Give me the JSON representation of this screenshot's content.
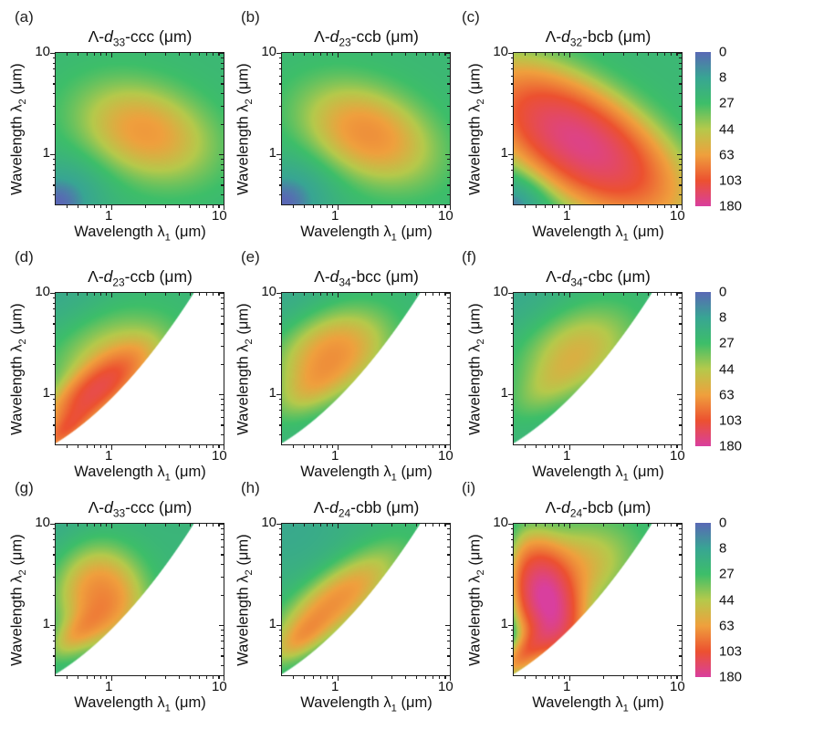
{
  "chart_data": {
    "type": "heatmap",
    "layout": "3x3 grid of log-log pseudocolor maps with one shared colorbar per row",
    "x_axis": {
      "label_pre": "Wavelength λ",
      "label_sub": "1",
      "label_post": " (μm)",
      "scale": "log",
      "min": 0.32,
      "max": 10,
      "tick_labels": [
        "1",
        "10"
      ],
      "major_ticks": [
        1,
        10
      ],
      "minor_ticks": [
        0.4,
        0.5,
        0.6,
        0.7,
        0.8,
        0.9,
        2,
        3,
        4,
        5,
        6,
        7,
        8,
        9
      ]
    },
    "y_axis": {
      "label_pre": "Wavelength λ",
      "label_sub": "2",
      "label_post": " (μm)",
      "scale": "log",
      "min": 0.32,
      "max": 10,
      "tick_labels": [
        "1",
        "10"
      ],
      "major_ticks": [
        1,
        10
      ],
      "minor_ticks": [
        0.4,
        0.5,
        0.6,
        0.7,
        0.8,
        0.9,
        2,
        3,
        4,
        5,
        6,
        7,
        8,
        9
      ]
    },
    "colorbar": {
      "tick_labels": [
        "0",
        "8",
        "27",
        "44",
        "63",
        "103",
        "180"
      ],
      "tick_values": [
        0,
        8,
        27,
        44,
        63,
        103,
        180
      ],
      "stop_colors": [
        "#5968b5",
        "#38a593",
        "#3dbe69",
        "#b5c94b",
        "#efa03d",
        "#ec5130",
        "#d93f9e"
      ],
      "unit": "μm"
    },
    "mask_boundary": {
      "c0": -0.05,
      "c1": 1.103,
      "c2": 0.427,
      "note": "log10(λ2) >= c0 + c1·u + c2·u², u = log10(λ1); region below is white (not phase-matchable)"
    },
    "panels": [
      {
        "panel_label": "(a)",
        "title_prefix": "Λ-",
        "title_var": "d",
        "title_sub": "33",
        "title_suffix": "-ccc (μm)",
        "masked": false,
        "base": 22,
        "peak_value_approx": 65,
        "blobs": [
          {
            "cx": 0.3,
            "cy": 0.22,
            "sx": 0.42,
            "sy": 0.3,
            "rot": -25,
            "amp": 44
          },
          {
            "cx": -0.52,
            "cy": -0.52,
            "sx": 0.34,
            "sy": 0.26,
            "rot": 45,
            "amp": -23
          }
        ]
      },
      {
        "panel_label": "(b)",
        "title_prefix": "Λ-",
        "title_var": "d",
        "title_sub": "23",
        "title_suffix": "-ccb (μm)",
        "masked": false,
        "base": 22,
        "peak_value_approx": 70,
        "blobs": [
          {
            "cx": 0.27,
            "cy": 0.2,
            "sx": 0.42,
            "sy": 0.29,
            "rot": -30,
            "amp": 49
          },
          {
            "cx": -0.52,
            "cy": -0.52,
            "sx": 0.36,
            "sy": 0.27,
            "rot": 45,
            "amp": -23
          }
        ]
      },
      {
        "panel_label": "(c)",
        "title_prefix": "Λ-",
        "title_var": "d",
        "title_sub": "32",
        "title_suffix": "-bcb (μm)",
        "masked": false,
        "base": 22,
        "peak_value_approx": 163,
        "blobs": [
          {
            "cx": 0.1,
            "cy": 0.11,
            "sx": 0.62,
            "sy": 0.3,
            "rot": -38,
            "amp": 141
          },
          {
            "cx": -0.52,
            "cy": -0.52,
            "sx": 0.28,
            "sy": 0.22,
            "rot": 45,
            "amp": -22
          }
        ]
      },
      {
        "panel_label": "(d)",
        "title_prefix": "Λ-",
        "title_var": "d",
        "title_sub": "23",
        "title_suffix": "-ccb (μm)",
        "masked": true,
        "base": 20,
        "peak_value_approx": 115,
        "blobs": [
          {
            "cx": -0.15,
            "cy": 0.02,
            "sx": 0.36,
            "sy": 0.14,
            "rot": 42,
            "amp": 85
          },
          {
            "cx": -0.02,
            "cy": 0.4,
            "sx": 0.4,
            "sy": 0.3,
            "rot": 30,
            "amp": 28
          },
          {
            "cx": -0.42,
            "cy": -0.38,
            "sx": 0.2,
            "sy": 0.08,
            "rot": 45,
            "amp": 50
          },
          {
            "cx": -0.5,
            "cy": 1.0,
            "sx": 0.45,
            "sy": 0.4,
            "rot": 0,
            "amp": -9
          }
        ]
      },
      {
        "panel_label": "(e)",
        "title_prefix": "Λ-",
        "title_var": "d",
        "title_sub": "34",
        "title_suffix": "-bcc (μm)",
        "masked": true,
        "base": 20,
        "peak_value_approx": 69,
        "blobs": [
          {
            "cx": -0.04,
            "cy": 0.42,
            "sx": 0.36,
            "sy": 0.27,
            "rot": 32,
            "amp": 49
          },
          {
            "cx": -0.26,
            "cy": 0.04,
            "sx": 0.26,
            "sy": 0.14,
            "rot": 42,
            "amp": 18
          },
          {
            "cx": -0.5,
            "cy": 1.0,
            "sx": 0.45,
            "sy": 0.4,
            "rot": 0,
            "amp": -9
          }
        ]
      },
      {
        "panel_label": "(f)",
        "title_prefix": "Λ-",
        "title_var": "d",
        "title_sub": "34",
        "title_suffix": "-cbc (μm)",
        "masked": true,
        "base": 20,
        "peak_value_approx": 54,
        "blobs": [
          {
            "cx": 0.07,
            "cy": 0.44,
            "sx": 0.38,
            "sy": 0.28,
            "rot": 32,
            "amp": 34
          },
          {
            "cx": -0.22,
            "cy": 0.05,
            "sx": 0.28,
            "sy": 0.14,
            "rot": 42,
            "amp": 12
          },
          {
            "cx": -0.5,
            "cy": 1.0,
            "sx": 0.45,
            "sy": 0.4,
            "rot": 0,
            "amp": -9
          }
        ]
      },
      {
        "panel_label": "(g)",
        "title_prefix": "Λ-",
        "title_var": "d",
        "title_sub": "33",
        "title_suffix": "-ccc (μm)",
        "masked": true,
        "base": 20,
        "peak_value_approx": 76,
        "blobs": [
          {
            "cx": -0.09,
            "cy": 0.3,
            "sx": 0.26,
            "sy": 0.34,
            "rot": 10,
            "amp": 56
          },
          {
            "cx": -0.3,
            "cy": -0.08,
            "sx": 0.22,
            "sy": 0.1,
            "rot": 45,
            "amp": 28
          },
          {
            "cx": -0.5,
            "cy": 1.0,
            "sx": 0.45,
            "sy": 0.4,
            "rot": 0,
            "amp": -9
          }
        ]
      },
      {
        "panel_label": "(h)",
        "title_prefix": "Λ-",
        "title_var": "d",
        "title_sub": "24",
        "title_suffix": "-cbb (μm)",
        "masked": true,
        "base": 20,
        "peak_value_approx": 70,
        "blobs": [
          {
            "cx": -0.01,
            "cy": 0.24,
            "sx": 0.46,
            "sy": 0.18,
            "rot": 42,
            "amp": 50
          },
          {
            "cx": -0.32,
            "cy": -0.12,
            "sx": 0.2,
            "sy": 0.09,
            "rot": 45,
            "amp": 22
          },
          {
            "cx": -0.5,
            "cy": 1.0,
            "sx": 0.45,
            "sy": 0.4,
            "rot": 0,
            "amp": -9
          }
        ]
      },
      {
        "panel_label": "(i)",
        "title_prefix": "Λ-",
        "title_var": "d",
        "title_sub": "24",
        "title_suffix": "-bcb (μm)",
        "masked": true,
        "base": 20,
        "peak_value_approx": 174,
        "blobs": [
          {
            "cx": -0.19,
            "cy": 0.2,
            "sx": 0.17,
            "sy": 0.36,
            "rot": 15,
            "amp": 142
          },
          {
            "cx": -0.02,
            "cy": 0.52,
            "sx": 0.42,
            "sy": 0.28,
            "rot": 30,
            "amp": 40
          },
          {
            "cx": -0.4,
            "cy": -0.28,
            "sx": 0.22,
            "sy": 0.09,
            "rot": 48,
            "amp": 60
          },
          {
            "cx": -0.53,
            "cy": 0.25,
            "sx": 0.07,
            "sy": 0.45,
            "rot": 0,
            "amp": -20
          }
        ]
      }
    ]
  }
}
